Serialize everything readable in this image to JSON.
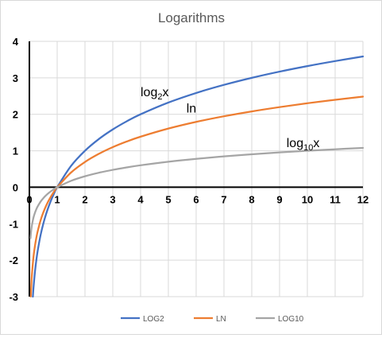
{
  "chart_data": {
    "type": "line",
    "title": "Logarithms",
    "xlabel": "",
    "ylabel": "",
    "xlim": [
      0,
      12
    ],
    "ylim": [
      -3,
      4
    ],
    "x_ticks": [
      0,
      1,
      2,
      3,
      4,
      5,
      6,
      7,
      8,
      9,
      10,
      11,
      12
    ],
    "y_ticks": [
      4,
      3,
      2,
      1,
      0,
      -1,
      -2,
      -3
    ],
    "grid": true,
    "legend_position": "bottom",
    "series": [
      {
        "name": "LOG2",
        "color": "#4472c4",
        "x": [
          0.125,
          0.15,
          0.2,
          0.25,
          0.3,
          0.4,
          0.5,
          0.6,
          0.7,
          0.8,
          0.9,
          1,
          1.5,
          2,
          2.5,
          3,
          3.5,
          4,
          5,
          6,
          7,
          8,
          9,
          10,
          11,
          12
        ],
        "y": [
          -3,
          -2.737,
          -2.322,
          -2,
          -1.737,
          -1.322,
          -1,
          -0.737,
          -0.515,
          -0.322,
          -0.152,
          0,
          0.585,
          1,
          1.322,
          1.585,
          1.807,
          2,
          2.322,
          2.585,
          2.807,
          3,
          3.17,
          3.322,
          3.459,
          3.585
        ]
      },
      {
        "name": "LN",
        "color": "#ed7d31",
        "x": [
          0.05,
          0.075,
          0.1,
          0.15,
          0.2,
          0.25,
          0.3,
          0.4,
          0.5,
          0.6,
          0.7,
          0.8,
          0.9,
          1,
          1.5,
          2,
          2.5,
          3,
          3.5,
          4,
          5,
          6,
          7,
          8,
          9,
          10,
          11,
          12
        ],
        "y": [
          -2.996,
          -2.59,
          -2.303,
          -1.897,
          -1.609,
          -1.386,
          -1.204,
          -0.916,
          -0.693,
          -0.511,
          -0.357,
          -0.223,
          -0.105,
          0,
          0.405,
          0.693,
          0.916,
          1.099,
          1.253,
          1.386,
          1.609,
          1.792,
          1.946,
          2.079,
          2.197,
          2.303,
          2.398,
          2.485
        ]
      },
      {
        "name": "LOG10",
        "color": "#a5a5a5",
        "x": [
          0.04,
          0.05,
          0.075,
          0.1,
          0.15,
          0.2,
          0.25,
          0.3,
          0.4,
          0.5,
          0.6,
          0.7,
          0.8,
          0.9,
          1,
          1.5,
          2,
          2.5,
          3,
          3.5,
          4,
          5,
          6,
          7,
          8,
          9,
          10,
          11,
          12
        ],
        "y": [
          -1.398,
          -1.301,
          -1.125,
          -1,
          -0.824,
          -0.699,
          -0.602,
          -0.523,
          -0.398,
          -0.301,
          -0.222,
          -0.155,
          -0.097,
          -0.046,
          0,
          0.176,
          0.301,
          0.398,
          0.477,
          0.544,
          0.602,
          0.699,
          0.778,
          0.845,
          0.903,
          0.954,
          1,
          1.041,
          1.079
        ]
      }
    ],
    "annotations": [
      {
        "base": "log",
        "sub": "2",
        "tail": "x",
        "x": 4,
        "y": 2.5
      },
      {
        "base": "ln",
        "sub": "",
        "tail": "",
        "x": 5.65,
        "y": 2.05
      },
      {
        "base": "log",
        "sub": "10",
        "tail": "x",
        "x": 9.25,
        "y": 1.1
      }
    ]
  }
}
